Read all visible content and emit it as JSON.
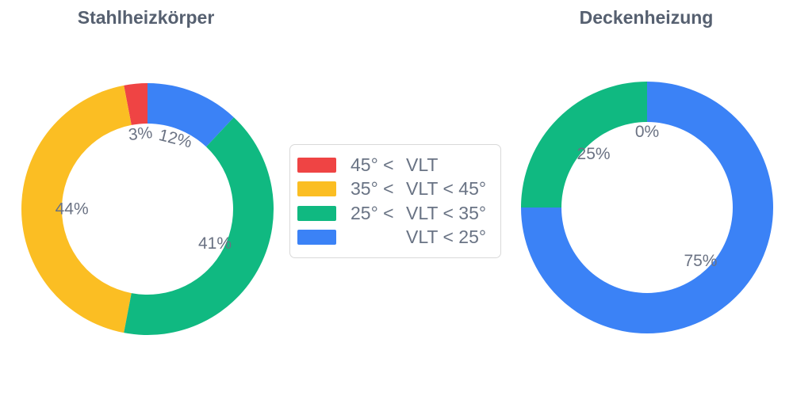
{
  "titles": {
    "left": "Stahlheizkörper",
    "right": "Deckenheizung"
  },
  "legend": {
    "position": "middle-center",
    "items": [
      {
        "label": "45° < VLT",
        "prefix": "45° <",
        "rest": "VLT",
        "color": "#EF4444"
      },
      {
        "label": "35° < VLT < 45°",
        "prefix": "35° <",
        "rest": "VLT < 45°",
        "color": "#FBBE23"
      },
      {
        "label": "25° < VLT < 35°",
        "prefix": "25° <",
        "rest": "VLT < 35°",
        "color": "#10B981"
      },
      {
        "label": "VLT < 25°",
        "prefix": "",
        "rest": "VLT < 25°",
        "color": "#3B82F6"
      }
    ]
  },
  "style": {
    "title_color": "#566070",
    "percent_label_color": "#6a7283",
    "legend_text_color": "#697384",
    "legend_border_color": "#d9d9d9",
    "background": "#ffffff"
  },
  "chart_data": [
    {
      "type": "pie",
      "title": "Stahlheizkörper",
      "hole": 0.68,
      "direction": "counterclockwise",
      "rotation_deg": 0,
      "label_radius_frac": 0.6,
      "categories": [
        "45° < VLT",
        "35° < VLT < 45°",
        "25° < VLT < 35°",
        "VLT < 25°"
      ],
      "values": [
        3,
        44,
        41,
        12
      ],
      "colors": [
        "#EF4444",
        "#FBBE23",
        "#10B981",
        "#3B82F6"
      ],
      "labels": [
        {
          "text": "3%",
          "rotation": -6
        },
        {
          "text": "44%",
          "rotation": 0
        },
        {
          "text": "41%",
          "rotation": 0
        },
        {
          "text": "12%",
          "rotation": 14
        }
      ]
    },
    {
      "type": "pie",
      "title": "Deckenheizung",
      "hole": 0.68,
      "direction": "counterclockwise",
      "rotation_deg": 0,
      "label_radius_frac": 0.6,
      "categories": [
        "45° < VLT",
        "35° < VLT < 45°",
        "25° < VLT < 35°",
        "VLT < 25°"
      ],
      "values": [
        0,
        0,
        25,
        75
      ],
      "colors": [
        "#EF4444",
        "#FBBE23",
        "#10B981",
        "#3B82F6"
      ],
      "labels": [
        {
          "text": "0%",
          "rotation": 0
        },
        {
          "text": "",
          "rotation": 0
        },
        {
          "text": "25%",
          "rotation": 0
        },
        {
          "text": "75%",
          "rotation": 0
        }
      ]
    }
  ]
}
